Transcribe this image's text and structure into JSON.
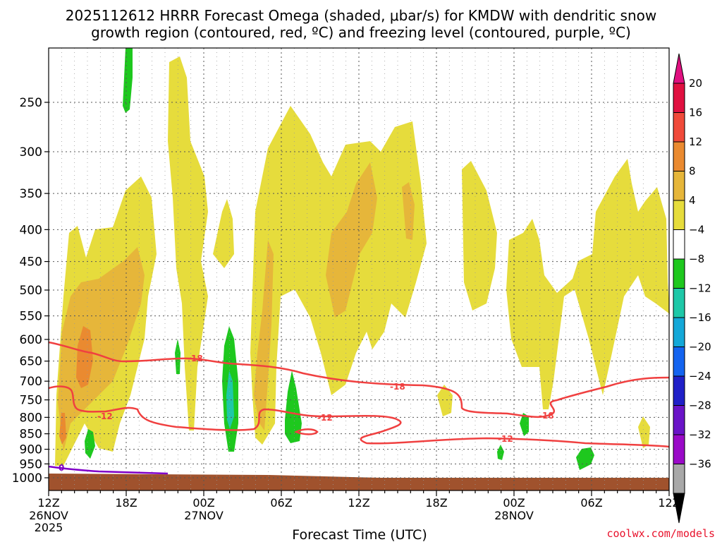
{
  "chart_data": {
    "type": "contour",
    "title_line1": "2025112612 HRRR Forecast Omega (shaded, μbar/s) for KMDW with dendritic snow",
    "title_line2": "growth region (contoured, red, ºC) and freezing level (contoured, purple, ºC)",
    "xlabel": "Forecast Time (UTC)",
    "ylabel": "",
    "credit": "coolwx.com/models",
    "x_ticks": [
      {
        "hour": 0,
        "l1": "12Z",
        "l2": "26NOV",
        "l3": "2025"
      },
      {
        "hour": 6,
        "l1": "18Z"
      },
      {
        "hour": 12,
        "l1": "00Z",
        "l2": "27NOV"
      },
      {
        "hour": 18,
        "l1": "06Z"
      },
      {
        "hour": 24,
        "l1": "12Z"
      },
      {
        "hour": 30,
        "l1": "18Z"
      },
      {
        "hour": 36,
        "l1": "00Z",
        "l2": "28NOV"
      },
      {
        "hour": 42,
        "l1": "06Z"
      },
      {
        "hour": 48,
        "l1": "12Z"
      }
    ],
    "y_ticks": [
      {
        "p": 250,
        "label": "250"
      },
      {
        "p": 300,
        "label": "300"
      },
      {
        "p": 350,
        "label": "350"
      },
      {
        "p": 400,
        "label": "400"
      },
      {
        "p": 450,
        "label": "450"
      },
      {
        "p": 500,
        "label": "500"
      },
      {
        "p": 550,
        "label": "550"
      },
      {
        "p": 600,
        "label": "600"
      },
      {
        "p": 650,
        "label": "650"
      },
      {
        "p": 700,
        "label": "700"
      },
      {
        "p": 750,
        "label": "750"
      },
      {
        "p": 800,
        "label": "800"
      },
      {
        "p": 850,
        "label": "850"
      },
      {
        "p": 900,
        "label": "900"
      },
      {
        "p": 950,
        "label": "950"
      },
      {
        "p": 1000,
        "label": "1000"
      }
    ],
    "colorbar_levels": [
      "20",
      "16",
      "12",
      "8",
      "4",
      "−4",
      "−8",
      "−12",
      "−16",
      "−20",
      "−24",
      "−28",
      "−32",
      "−36"
    ],
    "colorbar_colors": [
      "#e01040",
      "#f04a3a",
      "#ea8a30",
      "#e6b63a",
      "#e6dc3c",
      "#ffffff",
      "#1ec81e",
      "#1ec8a8",
      "#14a8d8",
      "#1464f0",
      "#2020c8",
      "#6a14c8",
      "#9a0ac8",
      "#a8a8a8"
    ],
    "colorbar_top": "#e01080",
    "colorbar_bottom": "#000000",
    "contour_labels": {
      "dgz_upper": "-18",
      "dgz_lower": "-12",
      "freezing": "0"
    },
    "series": [
      {
        "name": "dendritic growth upper bound",
        "value_C": -18
      },
      {
        "name": "dendritic growth lower bound",
        "value_C": -12
      },
      {
        "name": "freezing level",
        "value_C": 0
      }
    ],
    "colors": {
      "dgz": "#f04040",
      "freezing": "#8000c8",
      "terrain": "#a0522d",
      "yellow": "#e6dc3c",
      "gold": "#e6b63a",
      "orange": "#ea8a30",
      "green": "#1ec81e",
      "teal": "#1ec8a8"
    }
  }
}
